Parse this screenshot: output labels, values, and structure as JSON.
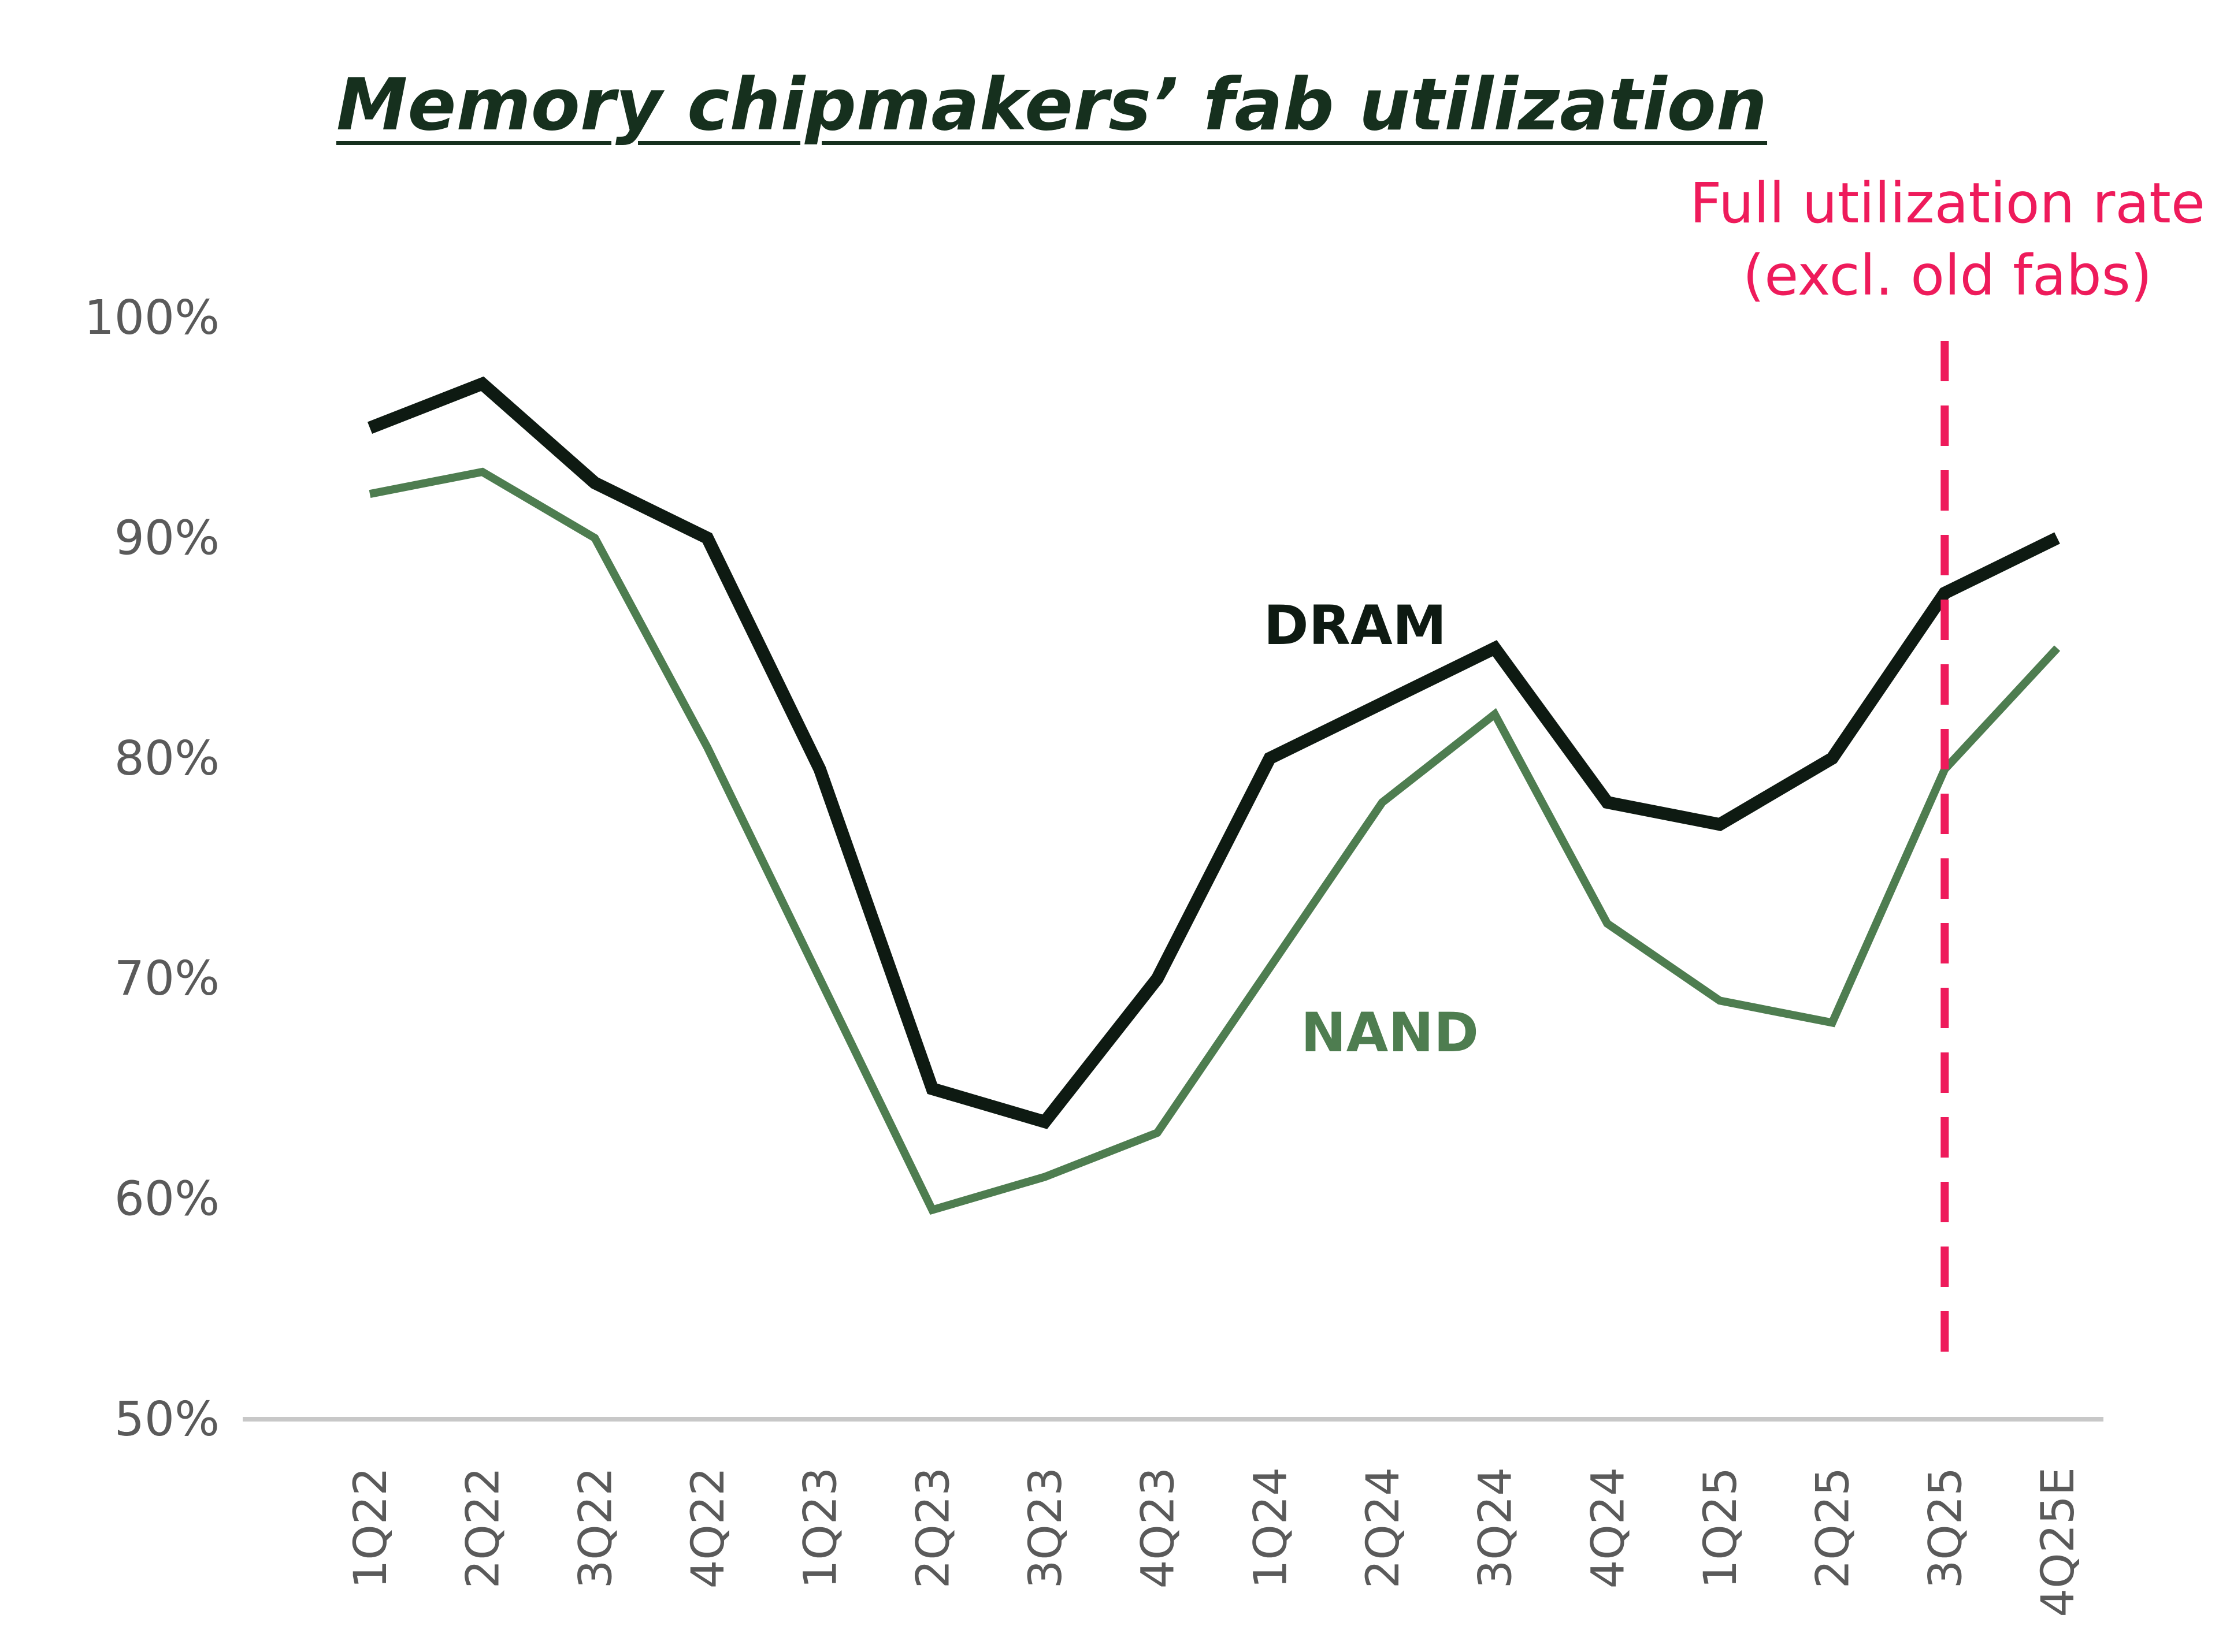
{
  "chart_data": {
    "type": "line",
    "title": "Memory chipmakers’ fab utilization",
    "categories": [
      "1Q22",
      "2Q22",
      "3Q22",
      "4Q22",
      "1Q23",
      "2Q23",
      "3Q23",
      "4Q23",
      "1Q24",
      "2Q24",
      "3Q24",
      "4Q24",
      "1Q25",
      "2Q25",
      "3Q25",
      "4Q25E"
    ],
    "series": [
      {
        "name": "DRAM",
        "color": "#0e1a12",
        "values": [
          95,
          97,
          92.5,
          90,
          79.5,
          65,
          63.5,
          70,
          80,
          82.5,
          85,
          78,
          77,
          80,
          87.5,
          90
        ]
      },
      {
        "name": "NAND",
        "color": "#4e7d50",
        "values": [
          92,
          93,
          90,
          80.5,
          70,
          59.5,
          61,
          63,
          70.5,
          78,
          82,
          72.5,
          69,
          68,
          79.5,
          85
        ]
      }
    ],
    "yticks": [
      "100%",
      "90%",
      "80%",
      "70%",
      "60%",
      "50%"
    ],
    "ylim": [
      50,
      100
    ],
    "xlabel": "",
    "ylabel": "",
    "grid": false,
    "annotation": {
      "lines": [
        "Full utilization rate",
        "(excl. old fabs)"
      ],
      "at_category": "3Q25",
      "color": "#ee1b5b"
    }
  }
}
